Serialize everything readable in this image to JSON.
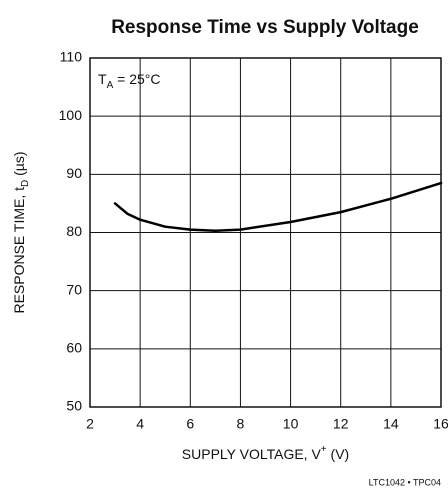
{
  "chart_data": {
    "type": "line",
    "title": "Response Time vs Supply Voltage",
    "x_label": [
      {
        "text": "SUPPLY VOLTAGE, V"
      },
      {
        "text": "+",
        "sup": true
      },
      {
        "text": " (V)"
      }
    ],
    "y_label": [
      {
        "text": "RESPONSE TIME, t"
      },
      {
        "text": "D",
        "sub": true
      },
      {
        "text": " (µs)"
      }
    ],
    "annotation": [
      {
        "text": "T"
      },
      {
        "text": "A",
        "sub": true
      },
      {
        "text": " = 25°C"
      }
    ],
    "footnote": "LTC1042 • TPC04",
    "x": [
      3,
      3.5,
      4,
      5,
      6,
      7,
      8,
      10,
      12,
      14,
      16
    ],
    "series": [
      {
        "color": "#000000",
        "values": [
          85,
          83.2,
          82.2,
          81,
          80.5,
          80.3,
          80.5,
          81.8,
          83.5,
          85.8,
          88.5
        ]
      }
    ],
    "xlim": [
      2,
      16
    ],
    "xticks": [
      2,
      4,
      6,
      8,
      10,
      12,
      14,
      16
    ],
    "ylim": [
      50,
      110
    ],
    "yticks": [
      50,
      60,
      70,
      80,
      90,
      100,
      110
    ],
    "grid": true
  }
}
